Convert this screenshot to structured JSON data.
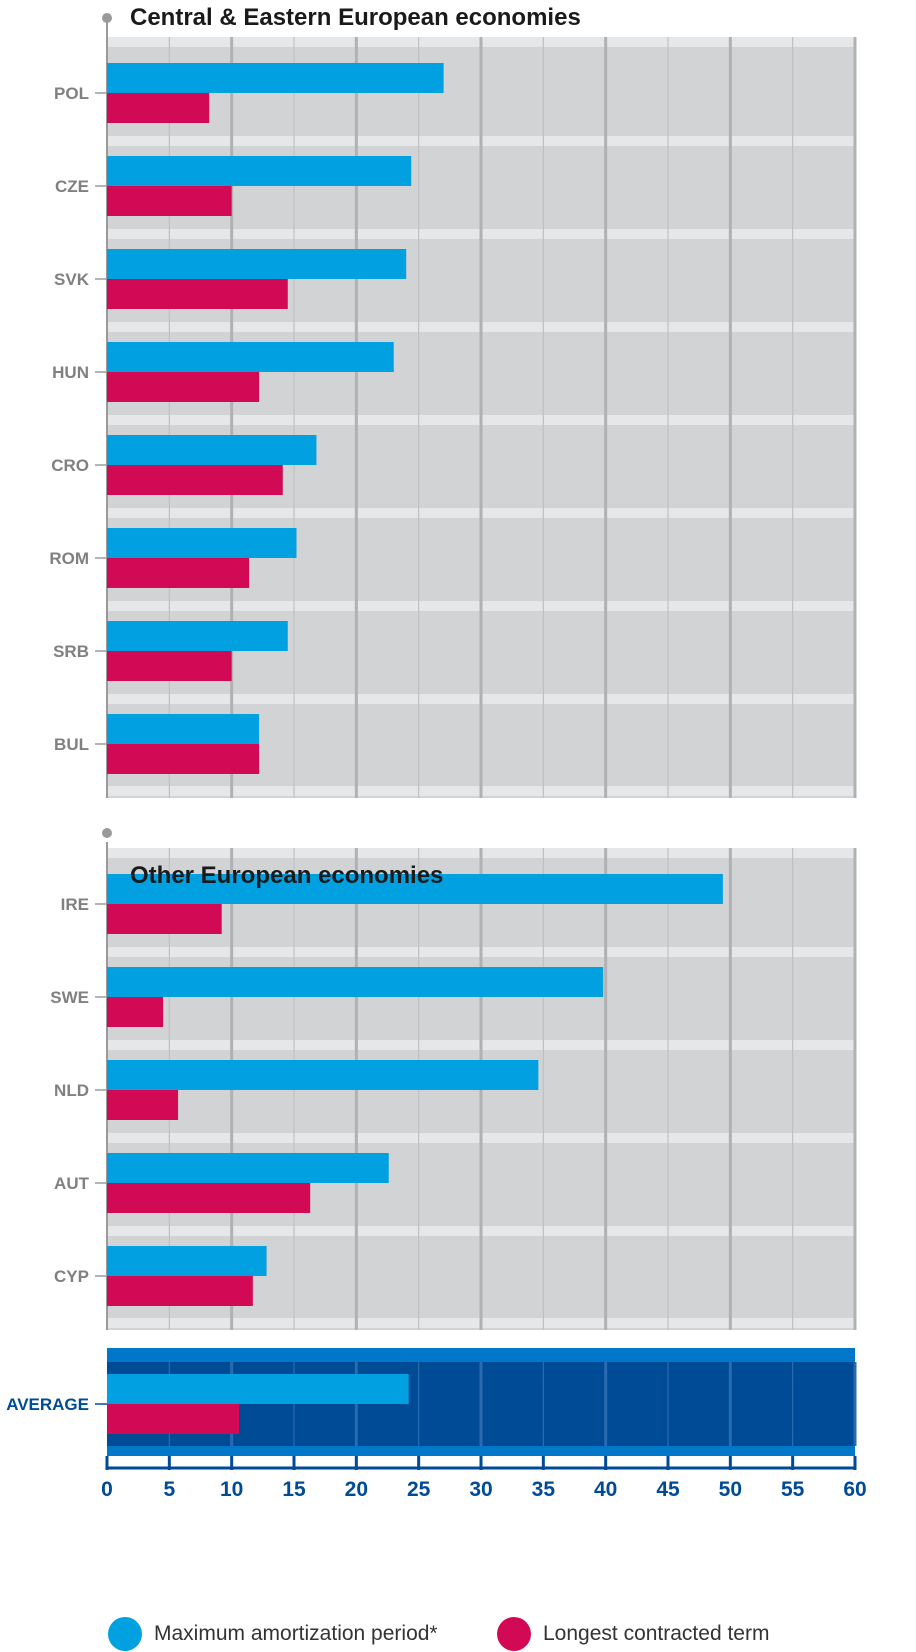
{
  "colors": {
    "max_amortization": "#00a0e1",
    "longest_term": "#d20a55",
    "panel_bg": "#d2d3d5",
    "panel_band": "#e6e7e8",
    "average_bg": "#004b96",
    "average_frame": "#0077c8",
    "axis_text": "#004b96",
    "category_text": "#808080"
  },
  "legend": {
    "max_amortization": "Maximum amortization period*",
    "longest_term": "Longest contracted term"
  },
  "chart_data": [
    {
      "type": "bar",
      "orientation": "horizontal",
      "title": "Central & Eastern European economies",
      "categories": [
        "POL",
        "CZE",
        "SVK",
        "HUN",
        "CRO",
        "ROM",
        "SRB",
        "BUL"
      ],
      "series": [
        {
          "name": "Maximum amortization period*",
          "values": [
            27,
            24.4,
            24,
            23,
            16.8,
            15.2,
            14.5,
            12.2
          ]
        },
        {
          "name": "Longest contracted term",
          "values": [
            8.2,
            10,
            14.5,
            12.2,
            14.1,
            11.4,
            10,
            12.2
          ]
        }
      ],
      "xlim": [
        0,
        60
      ],
      "grid": true
    },
    {
      "type": "bar",
      "orientation": "horizontal",
      "title": "Other European economies",
      "categories": [
        "IRE",
        "SWE",
        "NLD",
        "AUT",
        "CYP"
      ],
      "series": [
        {
          "name": "Maximum amortization period*",
          "values": [
            49.4,
            39.8,
            34.6,
            22.6,
            12.8
          ]
        },
        {
          "name": "Longest contracted term",
          "values": [
            9.2,
            4.5,
            5.7,
            16.3,
            11.7
          ]
        }
      ],
      "xlim": [
        0,
        60
      ],
      "grid": true
    },
    {
      "type": "bar",
      "orientation": "horizontal",
      "title": "",
      "categories": [
        "AVERAGE"
      ],
      "series": [
        {
          "name": "Maximum amortization period*",
          "values": [
            24.2
          ]
        },
        {
          "name": "Longest contracted term",
          "values": [
            10.6
          ]
        }
      ],
      "xlim": [
        0,
        60
      ],
      "xticks": [
        0,
        5,
        10,
        15,
        20,
        25,
        30,
        35,
        40,
        45,
        50,
        55,
        60
      ],
      "grid": true
    }
  ]
}
